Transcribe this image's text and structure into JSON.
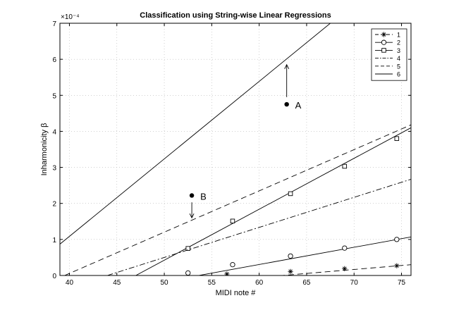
{
  "chart_data": {
    "type": "line",
    "title": "Classification using String-wise Linear Regressions",
    "xlabel": "MIDI note #",
    "ylabel": "Inharmonicity β",
    "y_exponent_label": "×10⁻⁴",
    "xlim": [
      39,
      76
    ],
    "ylim": [
      0,
      7
    ],
    "xticks": [
      40,
      45,
      50,
      55,
      60,
      65,
      70,
      75
    ],
    "yticks": [
      0,
      1,
      2,
      3,
      4,
      5,
      6,
      7
    ],
    "grid": true,
    "legend_position": "top-right",
    "series": [
      {
        "name": "1",
        "style": "dashed",
        "marker": "star",
        "line": [
          [
            39,
            -0.52
          ],
          [
            76,
            0.3
          ]
        ],
        "markers": [
          [
            56.6,
            0.04
          ],
          [
            63.3,
            0.11
          ],
          [
            69,
            0.19
          ],
          [
            74.5,
            0.27
          ]
        ]
      },
      {
        "name": "2",
        "style": "solid",
        "marker": "circle",
        "line": [
          [
            39,
            -0.7
          ],
          [
            76,
            1.07
          ]
        ],
        "markers": [
          [
            52.5,
            0.07
          ],
          [
            57.2,
            0.3
          ],
          [
            63.3,
            0.54
          ],
          [
            69,
            0.76
          ],
          [
            74.5,
            1.0
          ]
        ]
      },
      {
        "name": "3",
        "style": "solid",
        "marker": "square",
        "line": [
          [
            47,
            0.0
          ],
          [
            76,
            4.1
          ]
        ],
        "markers": [
          [
            52.5,
            0.75
          ],
          [
            57.2,
            1.51
          ],
          [
            63.3,
            2.27
          ],
          [
            69,
            3.03
          ],
          [
            74.5,
            3.8
          ]
        ]
      },
      {
        "name": "4",
        "style": "dashdot",
        "marker": "none",
        "line": [
          [
            44,
            0.0
          ],
          [
            76,
            2.67
          ]
        ]
      },
      {
        "name": "5",
        "style": "dashed",
        "marker": "none",
        "line": [
          [
            39.5,
            0.0
          ],
          [
            76,
            4.18
          ]
        ]
      },
      {
        "name": "6",
        "style": "solid",
        "marker": "none",
        "line": [
          [
            39,
            0.87
          ],
          [
            67.5,
            7.0
          ]
        ]
      }
    ],
    "annotations": [
      {
        "label": "A",
        "x": 62.9,
        "y": 4.75,
        "arrow_to": [
          62.9,
          5.85
        ],
        "arrow_from": [
          62.9,
          4.95
        ]
      },
      {
        "label": "B",
        "x": 52.9,
        "y": 2.22,
        "arrow_to": [
          52.9,
          1.6
        ],
        "arrow_from": [
          52.9,
          2.03
        ]
      }
    ]
  }
}
